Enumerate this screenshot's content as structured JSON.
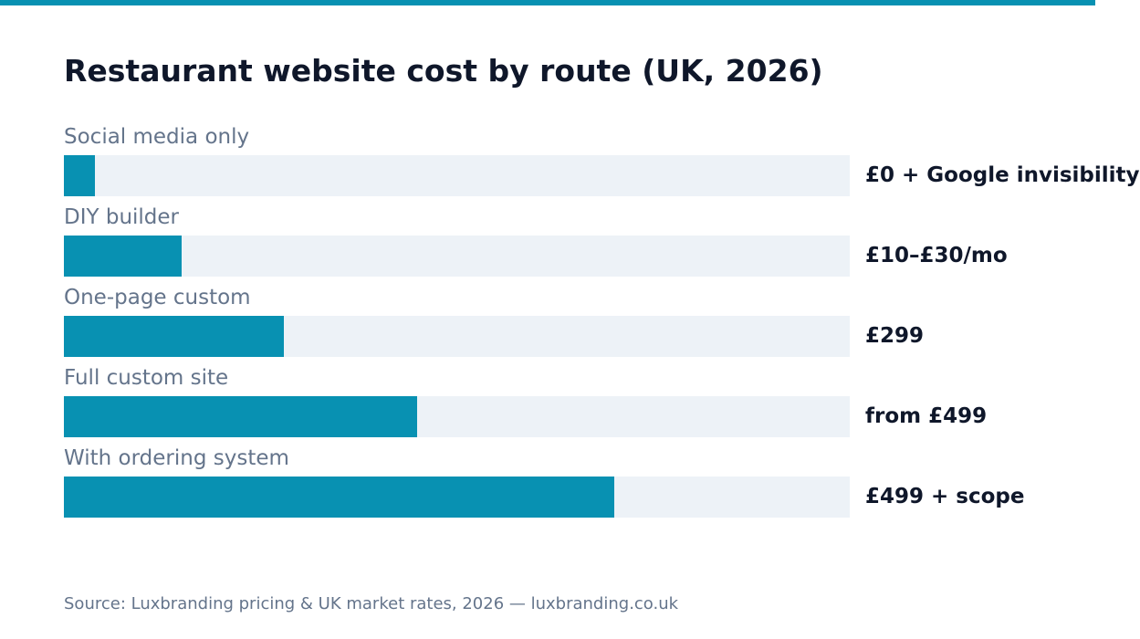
{
  "colors": {
    "accent": "#0891b2",
    "track": "#edf2f7",
    "title": "#0f172a",
    "label": "#64748b"
  },
  "chart_data": {
    "type": "bar",
    "orientation": "horizontal",
    "title": "Restaurant website cost by route (UK, 2026)",
    "categories": [
      "Social media only",
      "DIY builder",
      "One-page custom",
      "Full custom site",
      "With ordering system"
    ],
    "value_labels": [
      "£0 + Google invisibility",
      "£10–£30/mo",
      "£299",
      "from £499",
      "£499 + scope"
    ],
    "values": [
      0.04,
      0.15,
      0.28,
      0.45,
      0.7
    ],
    "value_scale": "relative bar fill (fraction of full track)",
    "xlim": [
      0,
      1
    ],
    "grid": false,
    "legend": "none"
  },
  "footer": {
    "source": "Source: Luxbranding pricing & UK market rates, 2026 — luxbranding.co.uk"
  }
}
